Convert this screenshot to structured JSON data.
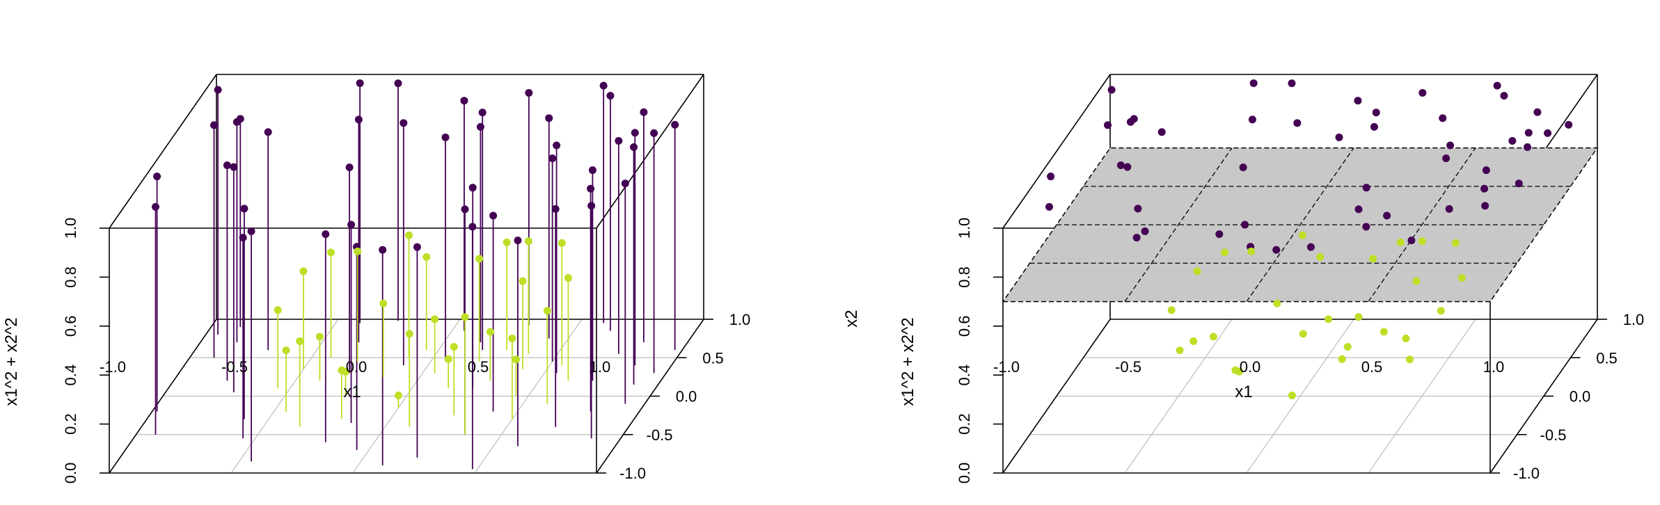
{
  "colors": {
    "outer": "#440154",
    "inner": "#bddf26",
    "plane_fill": "#c8c8c8"
  },
  "chart_data": [
    {
      "type": "scatter",
      "variant": "3d-scatter-with-drop-lines",
      "xlabel": "x1",
      "ylabel": "",
      "zlabel": "x1^2 + x2^2",
      "xlim": [
        -1,
        1
      ],
      "ylim": [
        -1,
        1
      ],
      "zlim": [
        0,
        1
      ],
      "x_ticks": [
        "-1.0",
        "-0.5",
        "0.0",
        "0.5",
        "1.0"
      ],
      "y_ticks": [
        "-1.0",
        "-0.5",
        "0.0",
        "0.5",
        "1.0"
      ],
      "z_ticks": [
        "0.0",
        "0.2",
        "0.4",
        "0.6",
        "0.8",
        "1.0"
      ],
      "grid": true,
      "drop_lines": true,
      "series": [
        {
          "color": "#440154",
          "points": [
            [
              -0.95,
              0.8,
              1.0
            ],
            [
              -0.9,
              0.5,
              0.95
            ],
            [
              -0.85,
              0.7,
              0.9
            ],
            [
              -0.88,
              0.9,
              0.85
            ],
            [
              -0.78,
              0.2,
              0.88
            ],
            [
              -0.72,
              0.05,
              0.92
            ],
            [
              -0.6,
              -0.3,
              0.86
            ],
            [
              -0.55,
              -0.55,
              0.82
            ],
            [
              -0.4,
              0.95,
              0.98
            ],
            [
              -0.35,
              0.7,
              0.91
            ],
            [
              -0.25,
              0.98,
              0.97
            ],
            [
              -0.2,
              -0.6,
              0.85
            ],
            [
              -0.1,
              0.4,
              0.99
            ],
            [
              -0.05,
              -0.7,
              0.83
            ],
            [
              0.05,
              0.85,
              0.94
            ],
            [
              0.1,
              -0.9,
              0.88
            ],
            [
              0.18,
              0.6,
              0.97
            ],
            [
              0.22,
              -0.8,
              0.86
            ],
            [
              0.3,
              0.92,
              0.95
            ],
            [
              0.35,
              -0.5,
              0.92
            ],
            [
              0.42,
              0.75,
              0.9
            ],
            [
              0.48,
              -0.95,
              0.99
            ],
            [
              0.55,
              0.3,
              0.93
            ],
            [
              0.6,
              -0.65,
              0.84
            ],
            [
              0.65,
              0.85,
              0.96
            ],
            [
              0.7,
              -0.4,
              0.89
            ],
            [
              0.75,
              0.55,
              0.87
            ],
            [
              0.8,
              -0.2,
              0.91
            ],
            [
              0.85,
              0.4,
              0.95
            ],
            [
              0.9,
              0.15,
              0.97
            ],
            [
              0.92,
              -0.1,
              0.9
            ],
            [
              0.95,
              0.3,
              0.98
            ],
            [
              0.97,
              0.6,
              0.92
            ],
            [
              -0.98,
              -0.2,
              0.96
            ],
            [
              -0.92,
              -0.5,
              0.93
            ],
            [
              -0.45,
              -0.85,
              0.94
            ],
            [
              0.05,
              0.5,
              0.9
            ],
            [
              0.25,
              0.1,
              0.82
            ],
            [
              -0.3,
              0.3,
              0.84
            ],
            [
              0.6,
              0.95,
              0.97
            ],
            [
              0.72,
              0.2,
              0.86
            ],
            [
              0.82,
              0.7,
              0.94
            ],
            [
              -0.7,
              0.6,
              0.89
            ],
            [
              0.4,
              -0.2,
              0.8
            ],
            [
              0.15,
              0.7,
              0.88
            ],
            [
              -0.15,
              -0.35,
              0.81
            ],
            [
              0.88,
              -0.55,
              0.95
            ],
            [
              0.5,
              0.45,
              0.83
            ]
          ]
        },
        {
          "color": "#bddf26",
          "points": [
            [
              -0.55,
              0.1,
              0.32
            ],
            [
              -0.5,
              0.35,
              0.4
            ],
            [
              -0.45,
              -0.2,
              0.25
            ],
            [
              -0.4,
              0.2,
              0.18
            ],
            [
              -0.35,
              -0.4,
              0.35
            ],
            [
              -0.3,
              0.45,
              0.45
            ],
            [
              -0.25,
              0.0,
              0.1
            ],
            [
              -0.2,
              -0.3,
              0.2
            ],
            [
              -0.15,
              0.25,
              0.3
            ],
            [
              -0.1,
              0.5,
              0.5
            ],
            [
              0.0,
              -0.15,
              0.05
            ],
            [
              0.05,
              0.3,
              0.22
            ],
            [
              0.1,
              -0.4,
              0.38
            ],
            [
              0.15,
              0.1,
              0.12
            ],
            [
              0.2,
              0.45,
              0.42
            ],
            [
              0.25,
              -0.25,
              0.28
            ],
            [
              0.3,
              0.2,
              0.2
            ],
            [
              0.35,
              -0.5,
              0.48
            ],
            [
              0.4,
              0.35,
              0.36
            ],
            [
              0.45,
              0.0,
              0.15
            ],
            [
              0.5,
              -0.3,
              0.33
            ],
            [
              0.55,
              0.4,
              0.5
            ],
            [
              0.6,
              -0.1,
              0.38
            ],
            [
              0.62,
              0.2,
              0.42
            ],
            [
              0.38,
              0.55,
              0.46
            ],
            [
              -0.05,
              0.6,
              0.38
            ],
            [
              0.28,
              0.6,
              0.44
            ],
            [
              -0.42,
              0.5,
              0.43
            ]
          ]
        }
      ]
    },
    {
      "type": "scatter",
      "variant": "3d-scatter-with-separating-plane",
      "xlabel": "x1",
      "ylabel": "x2",
      "zlabel": "x1^2 + x2^2",
      "xlim": [
        -1,
        1
      ],
      "ylim": [
        -1,
        1
      ],
      "zlim": [
        0,
        1
      ],
      "x_ticks": [
        "-1.0",
        "-0.5",
        "0.0",
        "0.5",
        "1.0"
      ],
      "y_ticks": [
        "-1.0",
        "-0.5",
        "0.0",
        "0.5",
        "1.0"
      ],
      "z_ticks": [
        "0.0",
        "0.2",
        "0.4",
        "0.6",
        "0.8",
        "1.0"
      ],
      "grid": true,
      "drop_lines": false,
      "plane_z": 0.7,
      "series": [
        {
          "color": "#440154",
          "points": [
            [
              -0.95,
              0.8,
              1.0
            ],
            [
              -0.9,
              0.5,
              0.95
            ],
            [
              -0.85,
              0.7,
              0.9
            ],
            [
              -0.88,
              0.9,
              0.85
            ],
            [
              -0.78,
              0.2,
              0.88
            ],
            [
              -0.72,
              0.05,
              0.92
            ],
            [
              -0.6,
              -0.3,
              0.86
            ],
            [
              -0.55,
              -0.55,
              0.82
            ],
            [
              -0.4,
              0.95,
              0.98
            ],
            [
              -0.35,
              0.7,
              0.91
            ],
            [
              -0.25,
              0.98,
              0.97
            ],
            [
              -0.2,
              -0.6,
              0.85
            ],
            [
              -0.1,
              0.4,
              0.99
            ],
            [
              -0.05,
              -0.7,
              0.83
            ],
            [
              0.05,
              0.85,
              0.94
            ],
            [
              0.1,
              -0.9,
              0.88
            ],
            [
              0.18,
              0.6,
              0.97
            ],
            [
              0.22,
              -0.8,
              0.86
            ],
            [
              0.3,
              0.92,
              0.95
            ],
            [
              0.35,
              -0.5,
              0.92
            ],
            [
              0.42,
              0.75,
              0.9
            ],
            [
              0.48,
              -0.95,
              0.99
            ],
            [
              0.55,
              0.3,
              0.93
            ],
            [
              0.6,
              -0.65,
              0.84
            ],
            [
              0.65,
              0.85,
              0.96
            ],
            [
              0.7,
              -0.4,
              0.89
            ],
            [
              0.75,
              0.55,
              0.87
            ],
            [
              0.8,
              -0.2,
              0.91
            ],
            [
              0.85,
              0.4,
              0.95
            ],
            [
              0.9,
              0.15,
              0.97
            ],
            [
              0.92,
              -0.1,
              0.9
            ],
            [
              0.95,
              0.3,
              0.98
            ],
            [
              0.97,
              0.6,
              0.92
            ],
            [
              -0.98,
              -0.2,
              0.96
            ],
            [
              -0.92,
              -0.5,
              0.93
            ],
            [
              -0.45,
              -0.85,
              0.94
            ],
            [
              0.05,
              0.5,
              0.9
            ],
            [
              0.25,
              0.1,
              0.82
            ],
            [
              -0.3,
              0.3,
              0.84
            ],
            [
              0.6,
              0.95,
              0.97
            ],
            [
              0.72,
              0.2,
              0.86
            ],
            [
              0.82,
              0.7,
              0.94
            ],
            [
              -0.7,
              0.6,
              0.89
            ],
            [
              0.4,
              -0.2,
              0.8
            ],
            [
              0.15,
              0.7,
              0.88
            ],
            [
              -0.15,
              -0.35,
              0.81
            ],
            [
              0.88,
              -0.55,
              0.95
            ],
            [
              0.5,
              0.45,
              0.83
            ]
          ]
        },
        {
          "color": "#bddf26",
          "points": [
            [
              -0.55,
              0.1,
              0.32
            ],
            [
              -0.5,
              0.35,
              0.4
            ],
            [
              -0.45,
              -0.2,
              0.25
            ],
            [
              -0.4,
              0.2,
              0.18
            ],
            [
              -0.35,
              -0.4,
              0.35
            ],
            [
              -0.3,
              0.45,
              0.45
            ],
            [
              -0.25,
              0.0,
              0.1
            ],
            [
              -0.2,
              -0.3,
              0.2
            ],
            [
              -0.15,
              0.25,
              0.3
            ],
            [
              -0.1,
              0.5,
              0.5
            ],
            [
              0.0,
              -0.15,
              0.05
            ],
            [
              0.05,
              0.3,
              0.22
            ],
            [
              0.1,
              -0.4,
              0.38
            ],
            [
              0.15,
              0.1,
              0.12
            ],
            [
              0.2,
              0.45,
              0.42
            ],
            [
              0.25,
              -0.25,
              0.28
            ],
            [
              0.3,
              0.2,
              0.2
            ],
            [
              0.35,
              -0.5,
              0.48
            ],
            [
              0.4,
              0.35,
              0.36
            ],
            [
              0.45,
              0.0,
              0.15
            ],
            [
              0.5,
              -0.3,
              0.33
            ],
            [
              0.55,
              0.4,
              0.5
            ],
            [
              0.6,
              -0.1,
              0.38
            ],
            [
              0.62,
              0.2,
              0.42
            ],
            [
              0.38,
              0.55,
              0.46
            ],
            [
              -0.05,
              0.6,
              0.38
            ],
            [
              0.28,
              0.6,
              0.44
            ],
            [
              -0.42,
              0.5,
              0.43
            ]
          ]
        }
      ]
    }
  ]
}
